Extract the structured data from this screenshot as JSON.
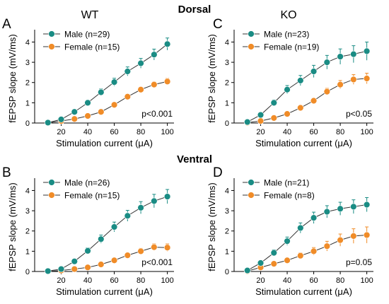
{
  "headers": {
    "wt": "WT",
    "ko": "KO",
    "dorsal": "Dorsal",
    "ventral": "Ventral"
  },
  "colors": {
    "male": "#1a8c84",
    "female": "#f08c28",
    "line": "#333333"
  },
  "chart_data": [
    {
      "panel": "A",
      "type": "line",
      "xlabel": "Stimulation current (μA)",
      "ylabel": "fEPSP slope (mV/ms)",
      "xlim": [
        0,
        105
      ],
      "ylim": [
        0,
        4.4
      ],
      "xticks": [
        "20",
        "40",
        "60",
        "80",
        "100"
      ],
      "yticks": [
        "0",
        "1",
        "2",
        "3",
        "4"
      ],
      "annotation": "p<0.001",
      "x": [
        10,
        20,
        30,
        40,
        50,
        60,
        70,
        80,
        90,
        100
      ],
      "series": [
        {
          "name": "Male (n=29)",
          "values": [
            0.02,
            0.18,
            0.55,
            1.0,
            1.52,
            2.02,
            2.55,
            2.95,
            3.38,
            3.9
          ],
          "errors": [
            0.02,
            0.06,
            0.1,
            0.13,
            0.16,
            0.19,
            0.22,
            0.24,
            0.27,
            0.3
          ]
        },
        {
          "name": "Female (n=15)",
          "values": [
            0.01,
            0.1,
            0.2,
            0.35,
            0.55,
            0.9,
            1.3,
            1.65,
            1.9,
            2.05
          ],
          "errors": [
            0.01,
            0.03,
            0.05,
            0.06,
            0.07,
            0.09,
            0.11,
            0.12,
            0.13,
            0.15
          ]
        }
      ]
    },
    {
      "panel": "C",
      "type": "line",
      "xlabel": "Stimulation current (μA)",
      "ylabel": "fEPSP slope (mV/ms)",
      "xlim": [
        0,
        105
      ],
      "ylim": [
        0,
        4.4
      ],
      "xticks": [
        "20",
        "40",
        "60",
        "80",
        "100"
      ],
      "yticks": [
        "0",
        "1",
        "2",
        "3",
        "4"
      ],
      "annotation": "p<0.05",
      "x": [
        10,
        20,
        30,
        40,
        50,
        60,
        70,
        80,
        90,
        100
      ],
      "series": [
        {
          "name": "Male (n=23)",
          "values": [
            0.05,
            0.4,
            1.0,
            1.65,
            2.1,
            2.55,
            3.0,
            3.28,
            3.4,
            3.55
          ],
          "errors": [
            0.03,
            0.08,
            0.14,
            0.2,
            0.25,
            0.3,
            0.34,
            0.38,
            0.42,
            0.45
          ]
        },
        {
          "name": "Female (n=19)",
          "values": [
            0.02,
            0.1,
            0.25,
            0.45,
            0.75,
            1.1,
            1.55,
            1.9,
            2.15,
            2.2
          ],
          "errors": [
            0.02,
            0.04,
            0.06,
            0.08,
            0.1,
            0.12,
            0.16,
            0.2,
            0.24,
            0.26
          ]
        }
      ]
    },
    {
      "panel": "B",
      "type": "line",
      "xlabel": "Stimulation current (μA)",
      "ylabel": "fEPSP slope (mV/ms)",
      "xlim": [
        0,
        105
      ],
      "ylim": [
        0,
        4.4
      ],
      "xticks": [
        "20",
        "40",
        "60",
        "80",
        "100"
      ],
      "yticks": [
        "0",
        "1",
        "2",
        "3",
        "4"
      ],
      "annotation": "p<0.001",
      "x": [
        10,
        20,
        30,
        40,
        50,
        60,
        70,
        80,
        90,
        100
      ],
      "series": [
        {
          "name": "Male (n=26)",
          "values": [
            0.02,
            0.12,
            0.5,
            1.02,
            1.6,
            2.2,
            2.75,
            3.15,
            3.48,
            3.7
          ],
          "errors": [
            0.02,
            0.05,
            0.1,
            0.15,
            0.2,
            0.24,
            0.27,
            0.3,
            0.33,
            0.35
          ]
        },
        {
          "name": "Female (n=15)",
          "values": [
            0.01,
            0.05,
            0.12,
            0.2,
            0.35,
            0.55,
            0.8,
            1.0,
            1.2,
            1.18
          ],
          "errors": [
            0.01,
            0.02,
            0.03,
            0.05,
            0.07,
            0.09,
            0.12,
            0.14,
            0.16,
            0.18
          ]
        }
      ]
    },
    {
      "panel": "D",
      "type": "line",
      "xlabel": "Stimulation current (μA)",
      "ylabel": "fEPSP slope (mV/ms)",
      "xlim": [
        0,
        105
      ],
      "ylim": [
        0,
        4.4
      ],
      "xticks": [
        "20",
        "40",
        "60",
        "80",
        "100"
      ],
      "yticks": [
        "0",
        "1",
        "2",
        "3",
        "4"
      ],
      "annotation": "p=0.05",
      "x": [
        10,
        20,
        30,
        40,
        50,
        60,
        70,
        80,
        90,
        100
      ],
      "series": [
        {
          "name": "Male (n=21)",
          "values": [
            0.05,
            0.42,
            0.92,
            1.5,
            2.15,
            2.65,
            2.95,
            3.1,
            3.2,
            3.3
          ],
          "errors": [
            0.03,
            0.1,
            0.15,
            0.2,
            0.25,
            0.28,
            0.3,
            0.32,
            0.34,
            0.35
          ]
        },
        {
          "name": "Female (n=8)",
          "values": [
            0.02,
            0.2,
            0.38,
            0.55,
            0.78,
            1.0,
            1.25,
            1.55,
            1.75,
            1.8
          ],
          "errors": [
            0.02,
            0.05,
            0.08,
            0.1,
            0.14,
            0.18,
            0.24,
            0.3,
            0.36,
            0.4
          ]
        }
      ]
    }
  ]
}
